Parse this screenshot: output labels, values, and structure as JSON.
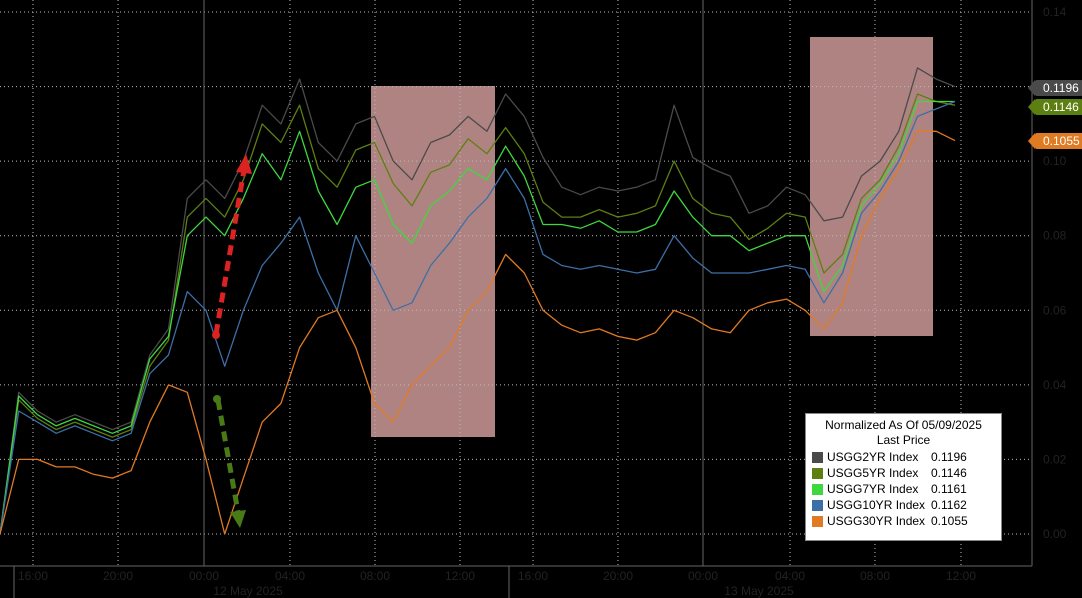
{
  "chart_data": {
    "type": "line",
    "title": "",
    "xlabel": "",
    "ylabel": "",
    "ylim": [
      -0.005,
      0.14
    ],
    "y_ticks": [
      "0.00",
      "0.02",
      "0.04",
      "0.06",
      "0.08",
      "0.10",
      "0.12",
      "0.14"
    ],
    "x_ticks": [
      "16:00",
      "20:00",
      "00:00",
      "04:00",
      "08:00",
      "12:00",
      "16:00",
      "20:00",
      "00:00",
      "04:00",
      "08:00",
      "12:00"
    ],
    "x_date_labels": [
      "12 May 2025",
      "13 May 2025"
    ],
    "grid": true,
    "legend": {
      "position": "bottom-right",
      "header": "Normalized As Of 05/09/2025",
      "subheader": "Last Price"
    },
    "series": [
      {
        "name": "USGG2YR Index",
        "last": "0.1196",
        "color": "#4a4a4a",
        "values": [
          0,
          0.038,
          0.033,
          0.03,
          0.032,
          0.03,
          0.028,
          0.03,
          0.048,
          0.055,
          0.09,
          0.095,
          0.09,
          0.1,
          0.115,
          0.11,
          0.122,
          0.105,
          0.1,
          0.11,
          0.112,
          0.1,
          0.095,
          0.105,
          0.107,
          0.112,
          0.108,
          0.118,
          0.112,
          0.101,
          0.093,
          0.091,
          0.093,
          0.092,
          0.093,
          0.095,
          0.115,
          0.101,
          0.098,
          0.096,
          0.086,
          0.088,
          0.093,
          0.091,
          0.084,
          0.085,
          0.096,
          0.1,
          0.108,
          0.125,
          0.122,
          0.12
        ]
      },
      {
        "name": "USGG5YR Index",
        "last": "0.1146",
        "color": "#5d7f12",
        "values": [
          0,
          0.036,
          0.031,
          0.028,
          0.03,
          0.028,
          0.026,
          0.028,
          0.045,
          0.052,
          0.085,
          0.09,
          0.085,
          0.095,
          0.11,
          0.105,
          0.115,
          0.098,
          0.093,
          0.103,
          0.105,
          0.094,
          0.088,
          0.097,
          0.099,
          0.106,
          0.102,
          0.109,
          0.102,
          0.089,
          0.085,
          0.085,
          0.087,
          0.085,
          0.086,
          0.088,
          0.1,
          0.09,
          0.086,
          0.085,
          0.079,
          0.082,
          0.086,
          0.085,
          0.07,
          0.075,
          0.09,
          0.095,
          0.104,
          0.118,
          0.116,
          0.115
        ]
      },
      {
        "name": "USGG7YR Index",
        "last": "0.1161",
        "color": "#3ed83e",
        "values": [
          0,
          0.037,
          0.032,
          0.029,
          0.031,
          0.029,
          0.027,
          0.029,
          0.047,
          0.053,
          0.08,
          0.085,
          0.08,
          0.09,
          0.102,
          0.095,
          0.108,
          0.092,
          0.083,
          0.093,
          0.095,
          0.083,
          0.078,
          0.088,
          0.092,
          0.098,
          0.095,
          0.104,
          0.096,
          0.083,
          0.083,
          0.082,
          0.084,
          0.081,
          0.081,
          0.083,
          0.092,
          0.085,
          0.08,
          0.08,
          0.076,
          0.078,
          0.08,
          0.08,
          0.065,
          0.072,
          0.088,
          0.094,
          0.102,
          0.116,
          0.116,
          0.116
        ]
      },
      {
        "name": "USGG10YR Index",
        "last": "0.1162",
        "color": "#3c6fa7",
        "values": [
          0,
          0.033,
          0.03,
          0.027,
          0.029,
          0.027,
          0.025,
          0.027,
          0.043,
          0.048,
          0.065,
          0.06,
          0.045,
          0.06,
          0.072,
          0.078,
          0.085,
          0.07,
          0.06,
          0.08,
          0.07,
          0.06,
          0.062,
          0.072,
          0.078,
          0.085,
          0.09,
          0.098,
          0.09,
          0.075,
          0.072,
          0.071,
          0.072,
          0.071,
          0.07,
          0.071,
          0.08,
          0.074,
          0.07,
          0.07,
          0.07,
          0.071,
          0.072,
          0.071,
          0.062,
          0.07,
          0.086,
          0.092,
          0.1,
          0.112,
          0.114,
          0.116
        ]
      },
      {
        "name": "USGG30YR Index",
        "last": "0.1055",
        "color": "#e07a23",
        "values": [
          0,
          0.02,
          0.02,
          0.018,
          0.018,
          0.016,
          0.015,
          0.017,
          0.03,
          0.04,
          0.038,
          0.02,
          0.0,
          0.015,
          0.03,
          0.035,
          0.05,
          0.058,
          0.06,
          0.05,
          0.035,
          0.03,
          0.04,
          0.045,
          0.05,
          0.06,
          0.065,
          0.075,
          0.07,
          0.06,
          0.056,
          0.054,
          0.055,
          0.053,
          0.052,
          0.054,
          0.06,
          0.058,
          0.055,
          0.054,
          0.06,
          0.062,
          0.063,
          0.06,
          0.055,
          0.062,
          0.08,
          0.09,
          0.098,
          0.108,
          0.108,
          0.1055
        ]
      }
    ]
  }
}
